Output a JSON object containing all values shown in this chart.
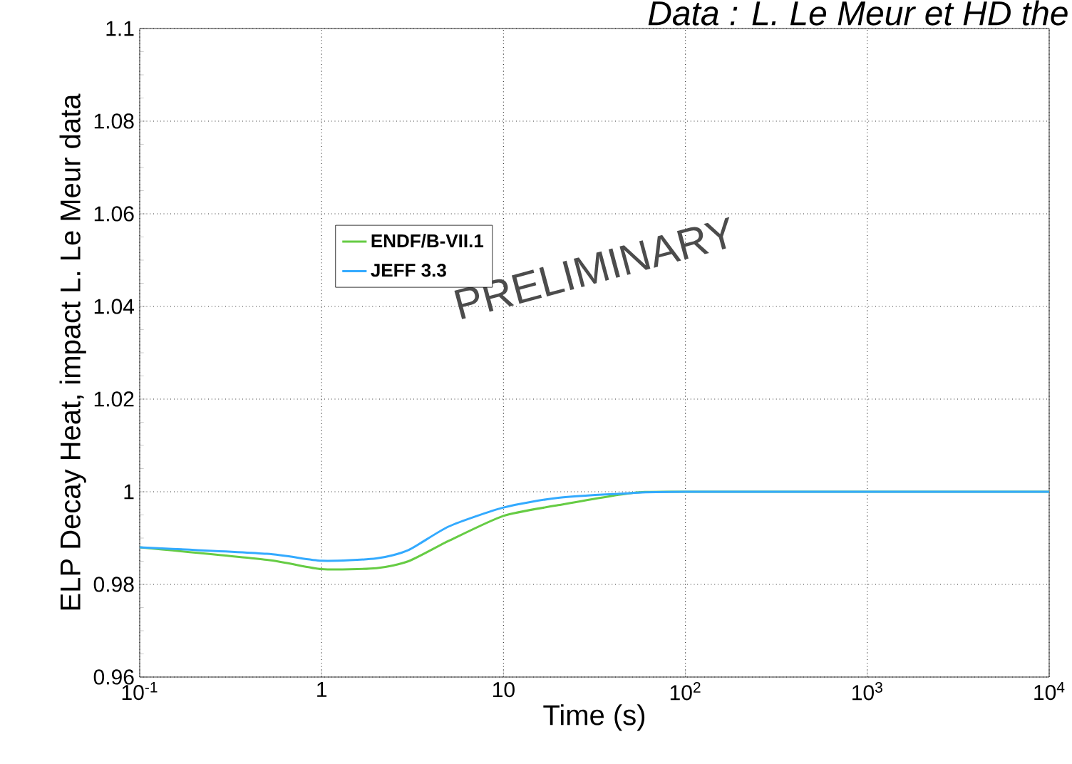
{
  "chart_data": {
    "type": "line",
    "title": "Data : L. Le Meur et HD the",
    "xlabel": "Time (s)",
    "ylabel": "ELP Decay Heat, impact L. Le Meur data",
    "log": "x",
    "xlim": [
      0.1,
      10000
    ],
    "ylim": [
      0.96,
      1.1
    ],
    "xticks": [
      {
        "value": 0.1,
        "label": "10$^{-1}$"
      },
      1,
      10,
      {
        "value": 100,
        "label": "10$^{2}$"
      },
      {
        "value": 1000,
        "label": "10$^{3}$"
      },
      {
        "value": 10000,
        "label": "10$^{4}$"
      }
    ],
    "yticks": [
      0.96,
      0.98,
      1,
      1.02,
      1.04,
      1.06,
      1.08,
      1.1
    ],
    "grid": true,
    "legend": "left",
    "marker": "none",
    "line_style": "solid",
    "annotations": [
      "PRELIMINARY"
    ],
    "x": [
      0.1,
      0.5,
      1,
      2,
      3,
      5,
      10,
      20,
      50,
      100,
      10000
    ],
    "series": [
      {
        "name": "ENDF/B-VII.1",
        "color": "#66cc44",
        "values": [
          0.988,
          0.9853,
          0.9833,
          0.9835,
          0.985,
          0.9894,
          0.9948,
          0.9971,
          0.9997,
          1.0,
          1.0
        ]
      },
      {
        "name": "JEFF 3.3",
        "color": "#33aaff",
        "values": [
          0.988,
          0.9866,
          0.9851,
          0.9856,
          0.9874,
          0.9925,
          0.9966,
          0.9987,
          0.9997,
          1.0,
          1.0
        ]
      }
    ]
  }
}
